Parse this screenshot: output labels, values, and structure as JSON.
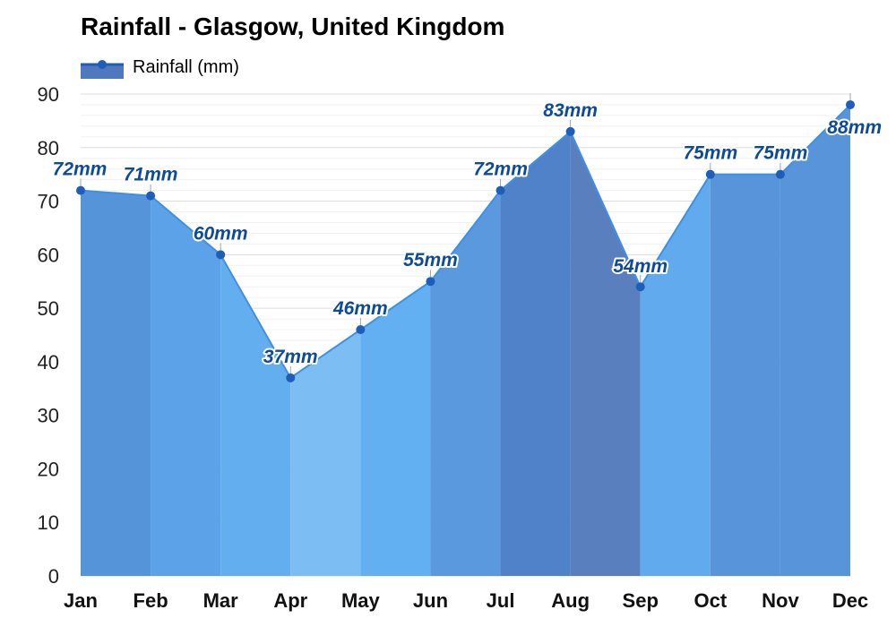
{
  "chart_data": {
    "type": "area",
    "title": "Rainfall - Glasgow, United Kingdom",
    "categories": [
      "Jan",
      "Feb",
      "Mar",
      "Apr",
      "May",
      "Jun",
      "Jul",
      "Aug",
      "Sep",
      "Oct",
      "Nov",
      "Dec"
    ],
    "series": [
      {
        "name": "Rainfall (mm)",
        "values": [
          72,
          71,
          60,
          37,
          46,
          55,
          72,
          83,
          54,
          75,
          75,
          88
        ],
        "labels": [
          "72mm",
          "71mm",
          "60mm",
          "37mm",
          "46mm",
          "55mm",
          "72mm",
          "83mm",
          "54mm",
          "75mm",
          "75mm",
          "88mm"
        ]
      }
    ],
    "ylim": [
      0,
      90
    ],
    "yticks": [
      0,
      10,
      20,
      30,
      40,
      50,
      60,
      70,
      80,
      90
    ],
    "grid": true,
    "legend": "top-left",
    "colors": {
      "band_fills": [
        "#5594d8",
        "#5ba2e8",
        "#63aeee",
        "#7cbdf3",
        "#62b0f1",
        "#5a99dd",
        "#5082c9",
        "#5a7fbf",
        "#62aaee",
        "#5894d9",
        "#5894d9",
        "#5a7fbf"
      ],
      "line": "#3f8fe6",
      "marker": "#1e5db8",
      "label": "#0d4a9a",
      "grid": "#e2e2e2",
      "legend_swatch": "#4f78be"
    }
  }
}
